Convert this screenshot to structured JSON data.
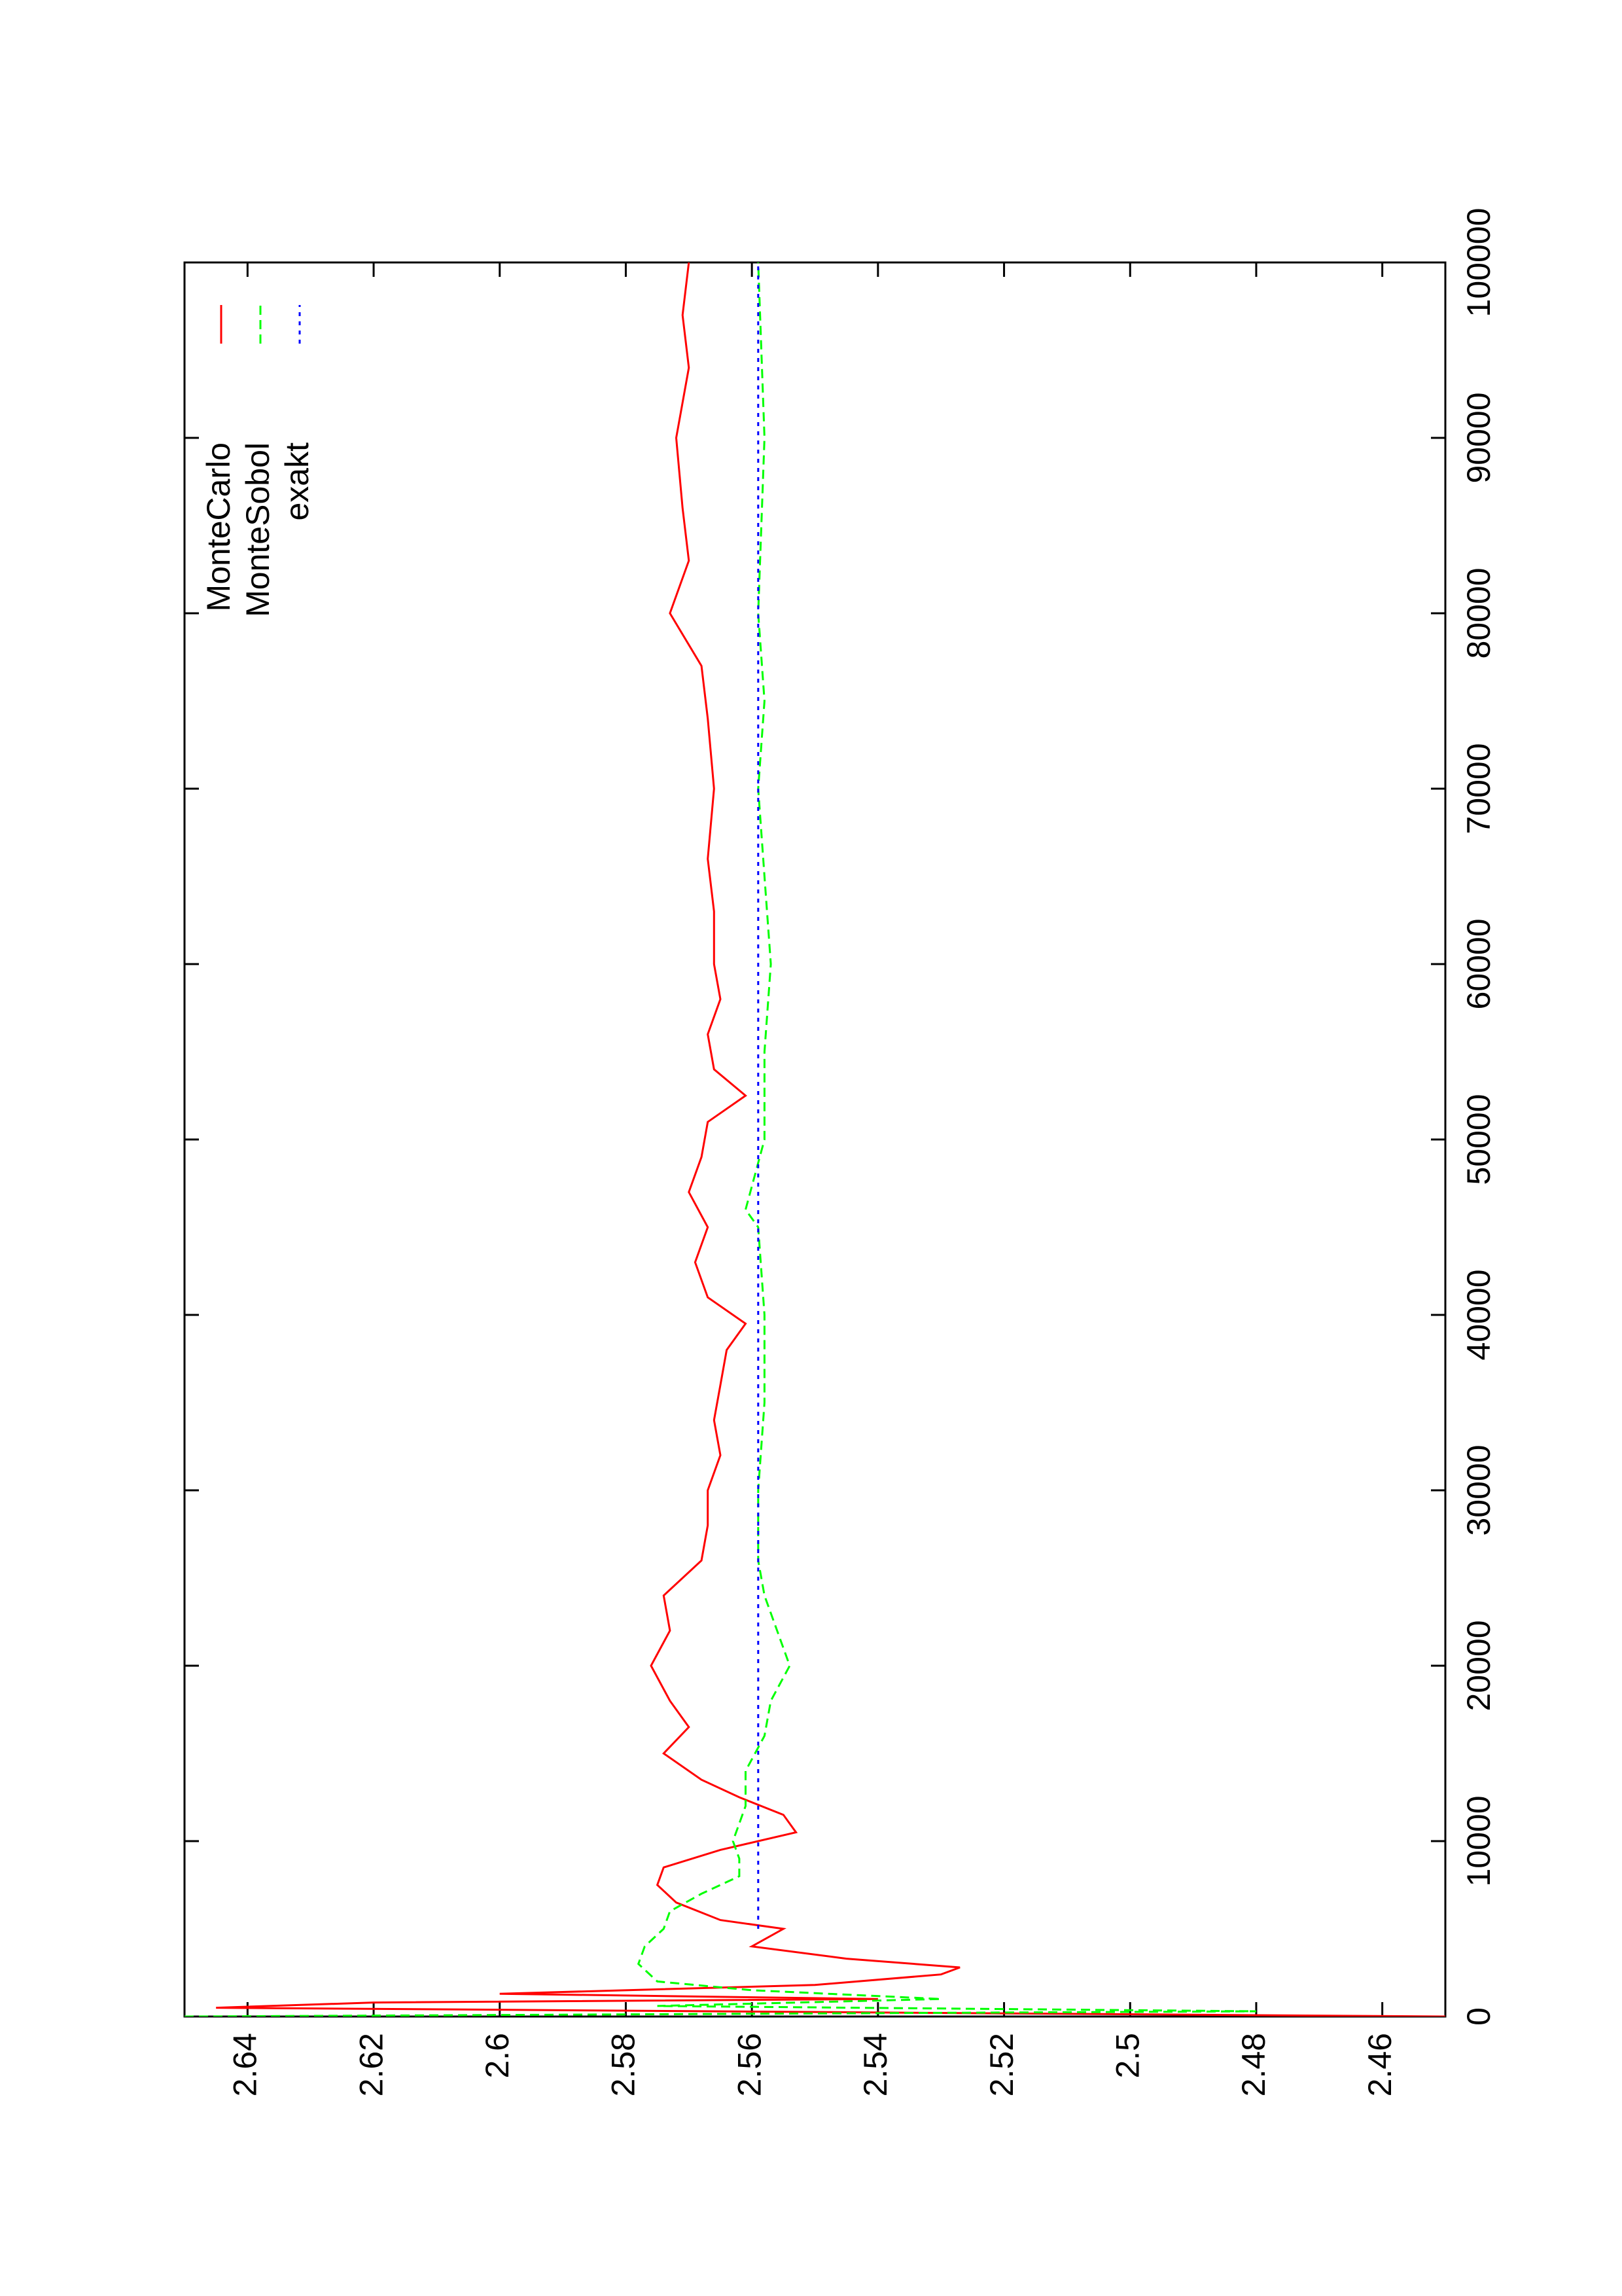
{
  "chart_data": {
    "type": "line",
    "xlim": [
      0,
      100000
    ],
    "xticks": [
      0,
      10000,
      20000,
      30000,
      40000,
      50000,
      60000,
      70000,
      80000,
      90000,
      100000
    ],
    "ylim": [
      2.45,
      2.65
    ],
    "yticks": [
      2.46,
      2.48,
      2.5,
      2.52,
      2.54,
      2.56,
      2.58,
      2.6,
      2.62,
      2.64
    ],
    "rotated": true,
    "legend": "top-right",
    "series": [
      {
        "name": "MonteCarlo",
        "color": "#ff0000",
        "dash": "solid",
        "x": [
          0,
          500,
          800,
          1000,
          1300,
          1800,
          2400,
          2800,
          3300,
          4000,
          5000,
          5500,
          6500,
          7500,
          8500,
          9500,
          10500,
          11500,
          12500,
          13500,
          15000,
          16500,
          18000,
          20000,
          22000,
          24000,
          26000,
          28000,
          30000,
          32000,
          34000,
          36000,
          38000,
          39500,
          41000,
          43000,
          45000,
          47000,
          49000,
          51000,
          52500,
          54000,
          56000,
          58000,
          60000,
          63000,
          66000,
          70000,
          74000,
          77000,
          80000,
          83000,
          86000,
          90000,
          94000,
          97000,
          100000
        ],
        "values": [
          2.45,
          2.645,
          2.62,
          2.54,
          2.6,
          2.55,
          2.53,
          2.527,
          2.545,
          2.56,
          2.555,
          2.565,
          2.572,
          2.575,
          2.574,
          2.565,
          2.553,
          2.555,
          2.562,
          2.568,
          2.574,
          2.57,
          2.573,
          2.576,
          2.573,
          2.574,
          2.568,
          2.567,
          2.567,
          2.565,
          2.566,
          2.565,
          2.564,
          2.561,
          2.567,
          2.569,
          2.567,
          2.57,
          2.568,
          2.567,
          2.561,
          2.566,
          2.567,
          2.565,
          2.566,
          2.566,
          2.567,
          2.566,
          2.567,
          2.568,
          2.573,
          2.57,
          2.571,
          2.572,
          2.57,
          2.571,
          2.57
        ]
      },
      {
        "name": "MonteSobol",
        "color": "#00ff00",
        "dash": "dashed",
        "x": [
          0,
          300,
          600,
          1000,
          1500,
          2000,
          3000,
          4000,
          5000,
          6000,
          7000,
          8000,
          9000,
          10000,
          12000,
          14000,
          16000,
          18000,
          20000,
          22000,
          24000,
          26000,
          30000,
          35000,
          40000,
          45000,
          46000,
          50000,
          55000,
          60000,
          65000,
          70000,
          75000,
          80000,
          90000,
          100000
        ],
        "values": [
          2.65,
          2.48,
          2.575,
          2.53,
          2.56,
          2.575,
          2.578,
          2.577,
          2.574,
          2.573,
          2.568,
          2.562,
          2.562,
          2.563,
          2.561,
          2.561,
          2.558,
          2.557,
          2.554,
          2.556,
          2.558,
          2.559,
          2.559,
          2.558,
          2.558,
          2.559,
          2.561,
          2.558,
          2.558,
          2.557,
          2.558,
          2.559,
          2.558,
          2.559,
          2.558,
          2.559
        ]
      },
      {
        "name": "exakt",
        "color": "#0000ff",
        "dash": "dotted",
        "x": [
          5000,
          100000
        ],
        "values": [
          2.559,
          2.559
        ]
      }
    ]
  }
}
